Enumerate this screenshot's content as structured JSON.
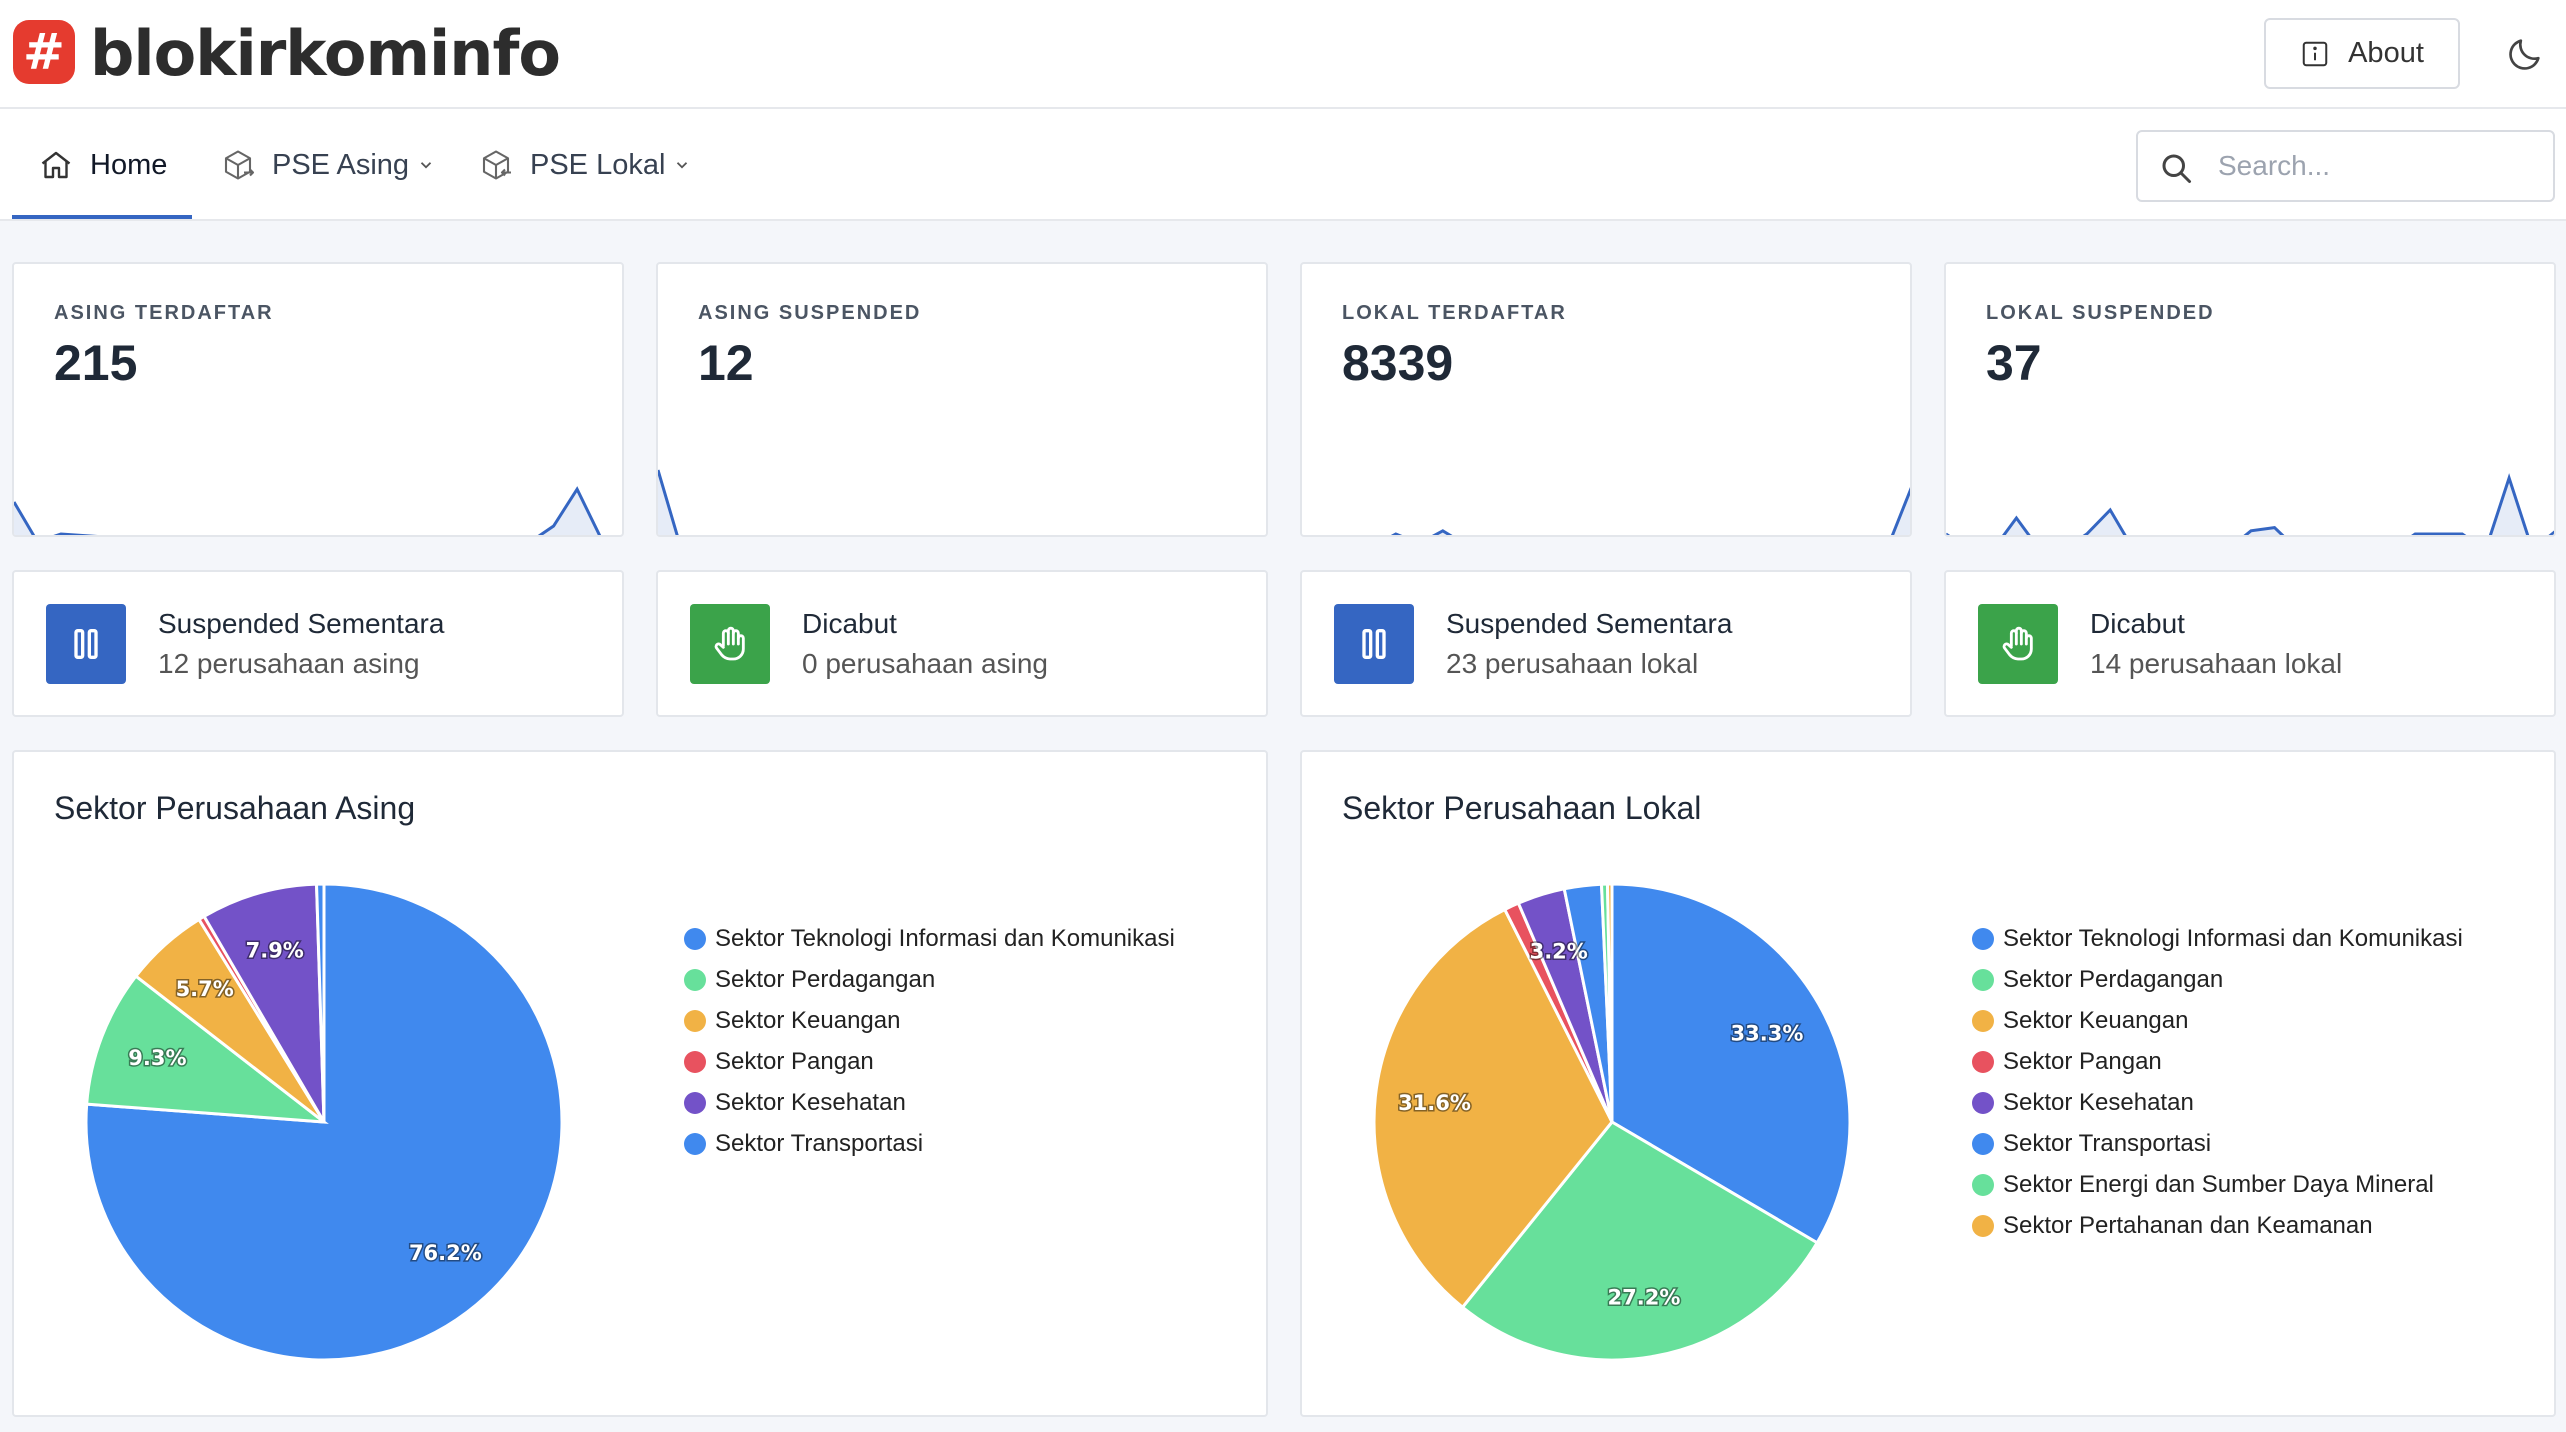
{
  "header": {
    "logo_glyph": "#",
    "brand": "blokirkominfo",
    "about_label": "About",
    "about_icon": "info-icon",
    "theme_icon": "moon-icon"
  },
  "nav": {
    "home": "Home",
    "asing": "PSE Asing",
    "lokal": "PSE Lokal",
    "search_placeholder": "Search..."
  },
  "stats": [
    {
      "label": "ASING TERDAFTAR",
      "value": "215"
    },
    {
      "label": "ASING SUSPENDED",
      "value": "12"
    },
    {
      "label": "LOKAL TERDAFTAR",
      "value": "8339"
    },
    {
      "label": "LOKAL SUSPENDED",
      "value": "37"
    }
  ],
  "info": [
    {
      "title": "Suspended Sementara",
      "sub": "12 perusahaan asing",
      "icon": "pause-icon",
      "color": "#3566c2"
    },
    {
      "title": "Dicabut",
      "sub": "0 perusahaan asing",
      "icon": "hand-icon",
      "color": "#3ba34a"
    },
    {
      "title": "Suspended Sementara",
      "sub": "23 perusahaan lokal",
      "icon": "pause-icon",
      "color": "#3566c2"
    },
    {
      "title": "Dicabut",
      "sub": "14 perusahaan lokal",
      "icon": "hand-icon",
      "color": "#3ba34a"
    }
  ],
  "charts": {
    "asing": {
      "title": "Sektor Perusahaan Asing",
      "legend": [
        "Sektor Teknologi Informasi dan Komunikasi",
        "Sektor Perdagangan",
        "Sektor Keuangan",
        "Sektor Pangan",
        "Sektor Kesehatan",
        "Sektor Transportasi"
      ]
    },
    "lokal": {
      "title": "Sektor Perusahaan Lokal",
      "legend": [
        "Sektor Teknologi Informasi dan Komunikasi",
        "Sektor Perdagangan",
        "Sektor Keuangan",
        "Sektor Pangan",
        "Sektor Kesehatan",
        "Sektor Transportasi",
        "Sektor Energi dan Sumber Daya Mineral",
        "Sektor Pertahanan dan Keamanan"
      ]
    }
  },
  "chart_data": [
    {
      "type": "pie",
      "title": "Sektor Perusahaan Asing",
      "categories": [
        "Sektor Teknologi Informasi dan Komunikasi",
        "Sektor Perdagangan",
        "Sektor Keuangan",
        "Sektor Pangan",
        "Sektor Kesehatan",
        "Sektor Transportasi"
      ],
      "values": [
        76.2,
        9.3,
        5.7,
        0.4,
        7.9,
        0.5
      ],
      "labels": [
        "76.2%",
        "9.3%",
        "5.7%",
        "",
        "7.9%",
        ""
      ],
      "colors": [
        "#4089ee",
        "#67e09b",
        "#f1b245",
        "#e8525f",
        "#7352c8",
        "#4089ee"
      ],
      "legend": "right"
    },
    {
      "type": "pie",
      "title": "Sektor Perusahaan Lokal",
      "categories": [
        "Sektor Teknologi Informasi dan Komunikasi",
        "Sektor Perdagangan",
        "Sektor Keuangan",
        "Sektor Pangan",
        "Sektor Kesehatan",
        "Sektor Transportasi",
        "Sektor Energi dan Sumber Daya Mineral",
        "Sektor Pertahanan dan Keamanan"
      ],
      "values": [
        33.3,
        27.2,
        31.6,
        1.0,
        3.2,
        2.5,
        0.4,
        0.3
      ],
      "labels": [
        "33.3%",
        "27.2%",
        "31.6%",
        "",
        "3.2%",
        "",
        "",
        ""
      ],
      "colors": [
        "#4089ee",
        "#67e09b",
        "#f1b245",
        "#e8525f",
        "#7352c8",
        "#4089ee",
        "#67e09b",
        "#f1b245"
      ],
      "legend": "right"
    },
    {
      "type": "line",
      "series": [
        {
          "values": [
            0.3,
            0.05,
            0.1,
            0.09,
            0.08,
            0.08,
            0.07,
            0.06,
            0.06,
            0.05,
            0.05,
            0.04,
            0.04,
            0.04,
            0.0,
            0.03,
            0.03,
            0.02,
            0.02,
            0.02,
            0.02,
            0.03,
            0.05,
            0.15,
            0.38,
            0.08,
            0.0
          ]
        },
        {
          "values": [
            0.5,
            0.0,
            0.0,
            0.0,
            0.0,
            0.0,
            0.0,
            0.0,
            0.0,
            0.0,
            0.0,
            0.0,
            0.0,
            0.0,
            0.0,
            0.0,
            0.0,
            0.0,
            0.0,
            0.0,
            0.0,
            0.0,
            0.0,
            0.0,
            0.0,
            0.0,
            0.0
          ]
        },
        {
          "values": [
            0.05,
            0.03,
            0.06,
            0.02,
            0.1,
            0.04,
            0.12,
            0.03,
            0.05,
            0.02,
            0.03,
            0.02,
            0.02,
            0.02,
            0.02,
            0.08,
            0.02,
            0.03,
            0.02,
            0.02,
            0.02,
            0.02,
            0.03,
            0.02,
            0.02,
            0.03,
            0.4
          ]
        },
        {
          "values": [
            0.1,
            0.0,
            0.0,
            0.2,
            0.0,
            0.0,
            0.1,
            0.25,
            0.0,
            0.0,
            0.0,
            0.0,
            0.0,
            0.12,
            0.14,
            0.0,
            0.05,
            0.0,
            0.0,
            0.0,
            0.1,
            0.1,
            0.1,
            0.0,
            0.45,
            0.0,
            0.12
          ]
        }
      ]
    }
  ]
}
